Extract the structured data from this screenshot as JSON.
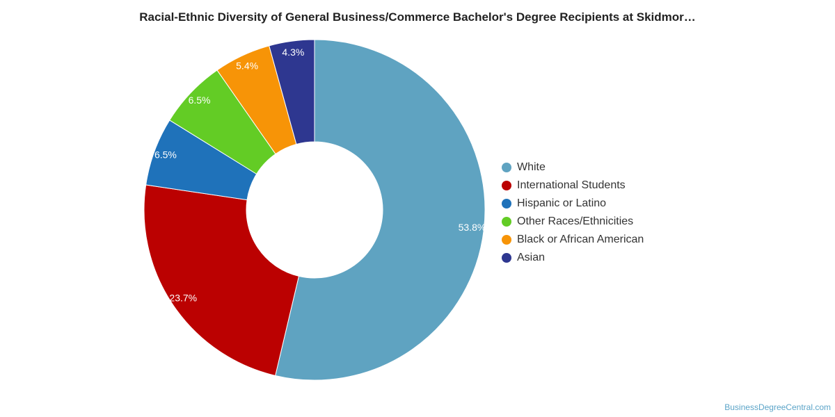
{
  "chart_data": {
    "type": "pie",
    "title": "Racial-Ethnic Diversity of General Business/Commerce Bachelor's Degree Recipients at Skidmor…",
    "categories": [
      "White",
      "International Students",
      "Hispanic or Latino",
      "Other Races/Ethnicities",
      "Black or African American",
      "Asian"
    ],
    "values": [
      53.8,
      23.7,
      6.5,
      6.5,
      5.4,
      4.3
    ],
    "value_labels": [
      "53.8%",
      "23.7%",
      "6.5%",
      "6.5%",
      "5.4%",
      "4.3%"
    ],
    "colors": [
      "#5fa3c1",
      "#bb0101",
      "#1f72ba",
      "#63cc25",
      "#f79407",
      "#2e3790"
    ],
    "donut": true,
    "legend_position": "right"
  },
  "legend": {
    "items": [
      {
        "label": "White",
        "color": "#5fa3c1"
      },
      {
        "label": "International Students",
        "color": "#bb0101"
      },
      {
        "label": "Hispanic or Latino",
        "color": "#1f72ba"
      },
      {
        "label": "Other Races/Ethnicities",
        "color": "#63cc25"
      },
      {
        "label": "Black or African American",
        "color": "#f79407"
      },
      {
        "label": "Asian",
        "color": "#2e3790"
      }
    ]
  },
  "footer": {
    "source": "BusinessDegreeCentral.com"
  }
}
